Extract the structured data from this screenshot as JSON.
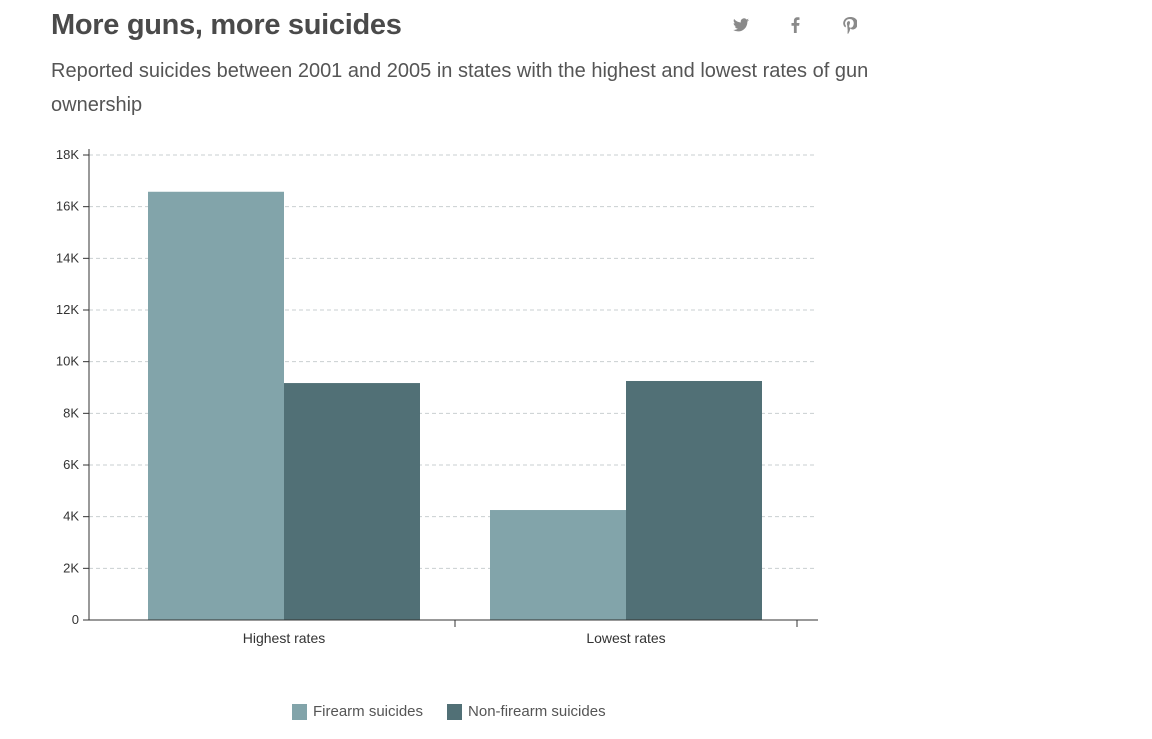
{
  "header": {
    "title": "More guns, more suicides",
    "subtitle": "Reported suicides between 2001 and 2005 in states with the highest and lowest rates of gun ownership"
  },
  "share_icons": [
    "twitter-icon",
    "facebook-icon",
    "pinterest-icon"
  ],
  "chart_data": {
    "type": "bar",
    "categories": [
      "Highest rates",
      "Lowest rates"
    ],
    "series": [
      {
        "name": "Firearm suicides",
        "values": [
          16577,
          4257
        ],
        "color": "#82a4aa"
      },
      {
        "name": "Non-firearm suicides",
        "values": [
          9172,
          9252
        ],
        "color": "#517076"
      }
    ],
    "ylim": [
      0,
      18000
    ],
    "y_ticks": [
      0,
      2000,
      4000,
      6000,
      8000,
      10000,
      12000,
      14000,
      16000,
      18000
    ],
    "y_tick_labels": [
      "0",
      "2K",
      "4K",
      "6K",
      "8K",
      "10K",
      "12K",
      "14K",
      "16K",
      "18K"
    ],
    "grid": true,
    "legend_position": "bottom",
    "xlabel": "",
    "ylabel": ""
  }
}
